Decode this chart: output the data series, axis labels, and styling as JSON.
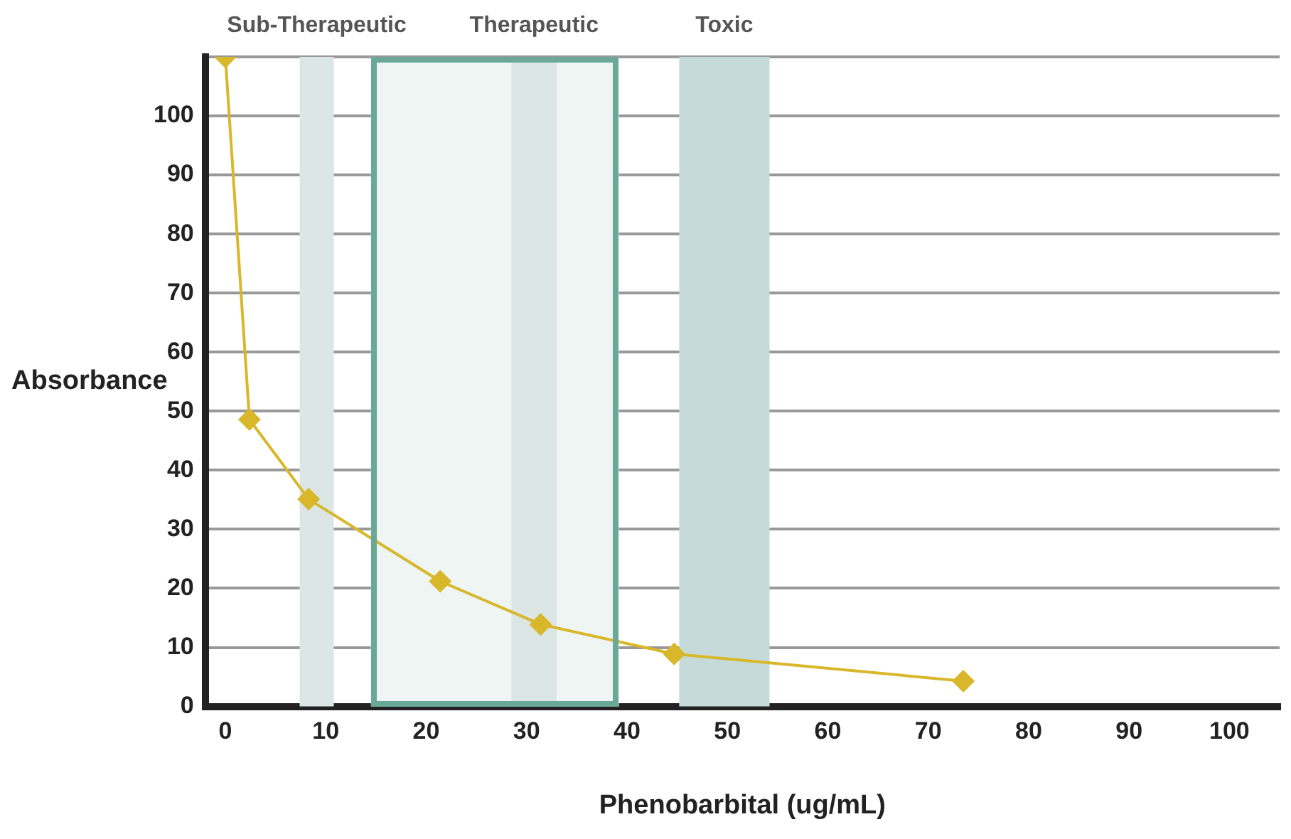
{
  "chart_data": {
    "type": "line",
    "xlabel": "Phenobarbital (ug/mL)",
    "ylabel": "Absorbance",
    "x": [
      0,
      2.4,
      8.3,
      21.4,
      31.4,
      44.7,
      73.5
    ],
    "series": [
      {
        "color": "#d8b72a",
        "values": [
          110,
          48.6,
          35.1,
          21.2,
          13.9,
          8.9,
          4.3
        ]
      }
    ],
    "xlim": [
      -2,
      105
    ],
    "xticks": [
      0,
      10,
      20,
      30,
      40,
      50,
      60,
      70,
      80,
      90,
      100
    ],
    "ylim": [
      0,
      110
    ],
    "yticks": [
      0,
      10,
      20,
      30,
      40,
      50,
      60,
      70,
      80,
      90,
      100,
      {
        "value": 110,
        "label": null
      }
    ],
    "bands": [
      {
        "axis": "x",
        "from": 14.5,
        "to": 39.2,
        "label": null,
        "color": "#eef5f3"
      },
      {
        "axis": "x",
        "from": 7.4,
        "to": 10.8,
        "label": "Sub-Therapeutic",
        "color": "#dbe6e5"
      },
      {
        "axis": "x",
        "from": 28.5,
        "to": 33,
        "label": "Therapeutic",
        "color": "#dbe6e5"
      },
      {
        "axis": "x",
        "from": 45.2,
        "to": 54.2,
        "label": "Toxic",
        "color": "#c6dbd9"
      }
    ],
    "grid": "y",
    "legend": false,
    "marker": "diamond",
    "line_style": "solid"
  }
}
